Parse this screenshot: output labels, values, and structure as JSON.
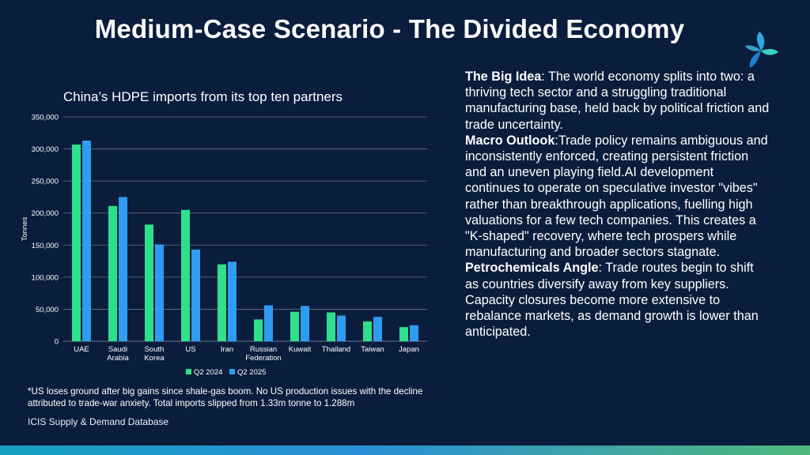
{
  "slide": {
    "title": "Medium-Case Scenario - The Divided Economy",
    "logo": "three-petal-logo-icon",
    "footnote": "*US loses ground after big gains since shale-gas boom. No US production issues with the decline attributed to trade-war anxiety. Total imports slipped from 1.33m tonne to 1.288m",
    "source": "ICIS Supply & Demand Database"
  },
  "text_panel": {
    "big_idea_label": "The Big Idea",
    "big_idea_text": ": The world economy splits into two: a thriving tech sector and a struggling traditional manufacturing base, held back by political friction and trade uncertainty.",
    "macro_label": "Macro Outlook",
    "macro_text": ":Trade policy remains ambiguous and inconsistently enforced, creating persistent friction and an uneven playing field.AI development continues to operate on speculative investor \"vibes\" rather than breakthrough applications, fuelling high valuations for a few tech companies. This creates a \"K-shaped\" recovery, where tech prospers while manufacturing and broader sectors stagnate.",
    "petro_label": "Petrochemicals Angle",
    "petro_text": ": Trade routes begin to shift as countries diversify away from key suppliers. Capacity closures become more extensive to rebalance markets, as demand growth is lower than anticipated."
  },
  "colors": {
    "background": "#0b1d3d",
    "series_q2_2024": "#2ee08c",
    "series_q2_2025": "#2f9cf0",
    "gridline": "#8a96ad"
  },
  "chart_data": {
    "type": "bar",
    "title": "China’s HDPE imports from its top ten partners",
    "xlabel": "",
    "ylabel": "Tonnes",
    "ylim": [
      0,
      350000
    ],
    "yticks": [
      0,
      50000,
      100000,
      150000,
      200000,
      250000,
      300000,
      350000
    ],
    "ytick_labels": [
      "0",
      "50,000",
      "100,000",
      "150,000",
      "200,000",
      "250,000",
      "300,000",
      "350,000"
    ],
    "categories": [
      "UAE",
      "Saudi Arabia",
      "South Korea",
      "US",
      "Iran",
      "Russian Federation",
      "Kuwait",
      "Thailand",
      "Taiwan",
      "Japan"
    ],
    "category_labels": [
      [
        "UAE"
      ],
      [
        "Saudi",
        "Arabia"
      ],
      [
        "South",
        "Korea"
      ],
      [
        "US"
      ],
      [
        "Iran"
      ],
      [
        "Russian",
        "Federation"
      ],
      [
        "Kuwait"
      ],
      [
        "Thailand"
      ],
      [
        "Taiwan"
      ],
      [
        "Japan"
      ]
    ],
    "series": [
      {
        "name": "Q2 2024",
        "values": [
          307000,
          211000,
          182000,
          205000,
          120000,
          34000,
          46000,
          45000,
          31000,
          22000
        ]
      },
      {
        "name": "Q2 2025",
        "values": [
          313000,
          225000,
          151000,
          143000,
          124000,
          56000,
          55000,
          40000,
          38000,
          25000
        ]
      }
    ],
    "legend": "bottom-center",
    "grid": true
  }
}
